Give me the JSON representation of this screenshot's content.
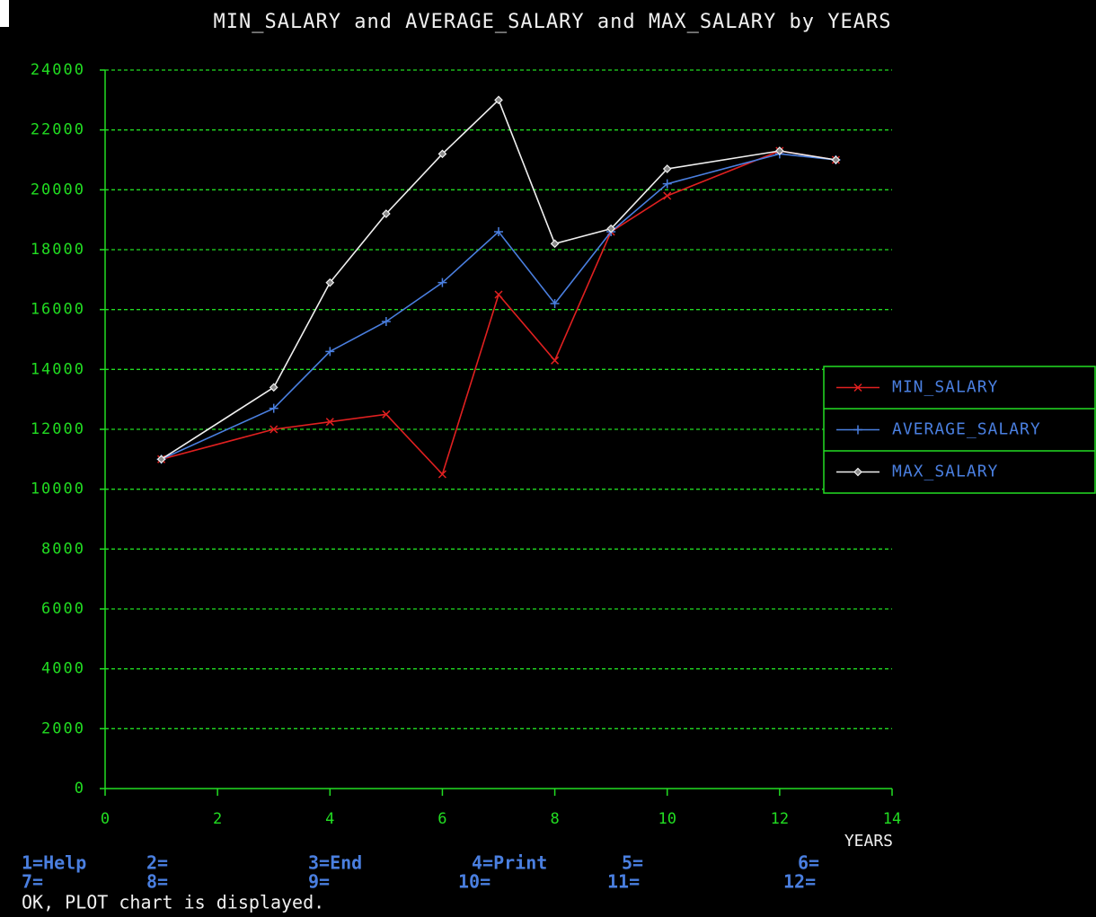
{
  "chart_data": {
    "type": "line",
    "title": "MIN_SALARY and AVERAGE_SALARY and MAX_SALARY by YEARS",
    "x_label": "YEARS",
    "x": [
      1,
      3,
      4,
      5,
      6,
      7,
      8,
      9,
      10,
      12,
      13
    ],
    "series": [
      {
        "name": "MIN_SALARY",
        "color": "#e02020",
        "marker": "x",
        "values": [
          11000,
          12000,
          12250,
          12500,
          10500,
          16500,
          14300,
          18600,
          19800,
          21300,
          21000
        ]
      },
      {
        "name": "AVERAGE_SALARY",
        "color": "#4a7fe0",
        "marker": "plus",
        "values": [
          11000,
          12700,
          14600,
          15600,
          16900,
          18600,
          16200,
          18600,
          20200,
          21200,
          21000
        ]
      },
      {
        "name": "MAX_SALARY",
        "color": "#f0f0f0",
        "marker": "diamond",
        "values": [
          11000,
          13400,
          16900,
          19200,
          21200,
          23000,
          18200,
          18700,
          20700,
          21300,
          21000
        ]
      }
    ],
    "xlim": [
      0,
      14
    ],
    "xticks": [
      0,
      2,
      4,
      6,
      8,
      10,
      12,
      14
    ],
    "ylim": [
      0,
      24000
    ],
    "yticks": [
      0,
      2000,
      4000,
      6000,
      8000,
      10000,
      12000,
      14000,
      16000,
      18000,
      20000,
      22000,
      24000
    ],
    "grid": true,
    "legend": "right"
  },
  "function_keys": [
    [
      "1=Help",
      "2=",
      "3=End",
      "4=Print",
      "5=",
      "6="
    ],
    [
      "7=",
      "8=",
      "9=",
      "10=",
      "11=",
      "12="
    ]
  ],
  "status": "OK, PLOT chart is displayed."
}
